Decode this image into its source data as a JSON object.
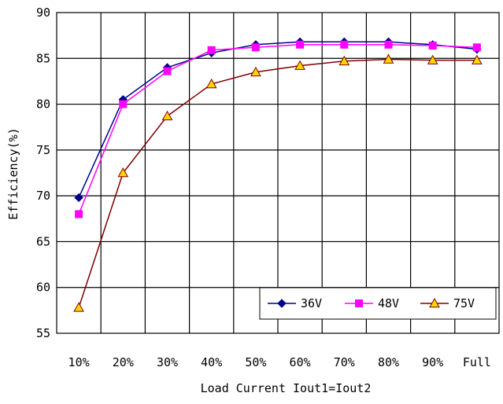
{
  "chart_data": {
    "type": "line",
    "title": "",
    "xlabel": "Load Current Iout1=Iout2",
    "ylabel": "Efficiency(%)",
    "categories": [
      "10%",
      "20%",
      "30%",
      "40%",
      "50%",
      "60%",
      "70%",
      "80%",
      "90%",
      "Full"
    ],
    "ylim": [
      55,
      90
    ],
    "yticks": [
      55,
      60,
      65,
      70,
      75,
      80,
      85,
      90
    ],
    "grid": true,
    "legend_position": "bottom-right",
    "series": [
      {
        "name": "36V",
        "values": [
          69.8,
          80.5,
          84.0,
          85.6,
          86.5,
          86.8,
          86.8,
          86.8,
          86.5,
          86.0
        ],
        "color": "#00008B",
        "marker": "diamond"
      },
      {
        "name": "48V",
        "values": [
          68.0,
          80.0,
          83.6,
          85.9,
          86.2,
          86.5,
          86.5,
          86.5,
          86.4,
          86.2
        ],
        "color": "#FF00FF",
        "marker": "square"
      },
      {
        "name": "75V",
        "values": [
          57.8,
          72.5,
          78.7,
          82.2,
          83.5,
          84.2,
          84.7,
          84.9,
          84.8,
          84.8
        ],
        "color": "#800000",
        "marker": "triangle",
        "marker_fill": "#FFD700"
      }
    ]
  }
}
